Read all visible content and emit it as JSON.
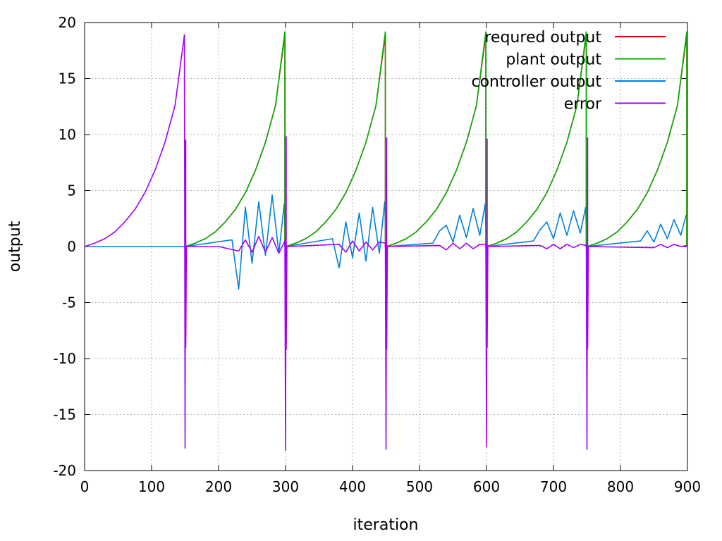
{
  "chart_data": {
    "type": "line",
    "xlabel": "iteration",
    "ylabel": "output",
    "xlim": [
      0,
      900
    ],
    "ylim": [
      -20,
      20
    ],
    "x_ticks": [
      0,
      100,
      200,
      300,
      400,
      500,
      600,
      700,
      800,
      900
    ],
    "y_ticks": [
      -20,
      -15,
      -10,
      -5,
      0,
      5,
      10,
      15,
      20
    ],
    "grid": true,
    "legend_position": "top-right",
    "period": 150,
    "series": [
      {
        "name": "requred output",
        "color": "#e00000",
        "x": [
          0,
          15,
          30,
          45,
          60,
          75,
          90,
          105,
          120,
          135,
          149
        ],
        "values": [
          0.0,
          0.3,
          0.7,
          1.3,
          2.2,
          3.3,
          4.8,
          6.8,
          9.3,
          12.6,
          18.9
        ],
        "segments": [
          2,
          3,
          4,
          5,
          6
        ]
      },
      {
        "name": "plant output",
        "color": "#00b000",
        "x": [
          0,
          15,
          30,
          45,
          60,
          75,
          90,
          105,
          120,
          135,
          149
        ],
        "values": [
          0.0,
          0.3,
          0.7,
          1.3,
          2.2,
          3.3,
          4.8,
          6.8,
          9.3,
          12.6,
          19.2
        ],
        "segments": [
          2,
          3,
          4,
          5,
          6
        ]
      },
      {
        "name": "controller output",
        "color": "#0080e0",
        "x": [
          0,
          150,
          220,
          230,
          240,
          250,
          260,
          270,
          280,
          290,
          298,
          300,
          370,
          380,
          390,
          400,
          410,
          420,
          430,
          440,
          448,
          450,
          520,
          530,
          540,
          550,
          560,
          570,
          580,
          590,
          598,
          600,
          670,
          680,
          690,
          700,
          710,
          720,
          730,
          740,
          748,
          750,
          830,
          840,
          850,
          860,
          870,
          880,
          890,
          898,
          900
        ],
        "values": [
          0,
          0,
          0.6,
          -3.8,
          3.5,
          -1.5,
          4.0,
          -0.8,
          4.6,
          -0.6,
          3.8,
          0,
          0.7,
          -1.9,
          2.2,
          -1.0,
          3.0,
          -1.3,
          3.5,
          -0.6,
          4.0,
          0,
          0.3,
          1.4,
          1.9,
          0.4,
          2.8,
          0.8,
          3.4,
          1.0,
          3.8,
          0,
          0.5,
          1.5,
          2.2,
          0.7,
          3.0,
          1.0,
          3.2,
          1.2,
          3.5,
          0,
          0.5,
          1.4,
          0.4,
          2.0,
          0.7,
          2.4,
          1.0,
          2.8,
          2.5
        ]
      },
      {
        "name": "error",
        "color": "#a000ff",
        "x": [
          0,
          15,
          30,
          45,
          60,
          75,
          90,
          105,
          120,
          135,
          149,
          150,
          151,
          151,
          152,
          200,
          230,
          240,
          250,
          260,
          270,
          280,
          290,
          299,
          300,
          301,
          301,
          302,
          380,
          390,
          400,
          410,
          420,
          430,
          440,
          449,
          450,
          451,
          451,
          452,
          530,
          540,
          550,
          560,
          570,
          580,
          590,
          599,
          600,
          601,
          601,
          602,
          680,
          690,
          700,
          710,
          720,
          730,
          740,
          749,
          750,
          751,
          751,
          752,
          850,
          860,
          870,
          880,
          890,
          900
        ],
        "values": [
          0.0,
          0.3,
          0.7,
          1.3,
          2.2,
          3.3,
          4.8,
          6.8,
          9.3,
          12.6,
          18.9,
          -18.0,
          9.5,
          -9.0,
          0.0,
          0.0,
          -0.4,
          0.6,
          -0.5,
          0.9,
          -0.5,
          0.8,
          -0.6,
          0.5,
          -18.2,
          9.8,
          -9.2,
          0.0,
          0.2,
          -0.5,
          0.5,
          -0.4,
          0.4,
          -0.3,
          0.4,
          0.3,
          -18.1,
          9.7,
          -9.1,
          0.0,
          0.1,
          -0.3,
          0.3,
          -0.2,
          0.3,
          -0.2,
          0.2,
          0.2,
          -17.9,
          9.6,
          -9.0,
          0.0,
          0.1,
          -0.2,
          0.2,
          -0.2,
          0.2,
          -0.1,
          0.2,
          0.1,
          -18.1,
          9.7,
          -9.1,
          0.0,
          -0.1,
          0.2,
          -0.1,
          0.2,
          0.0,
          0.1
        ]
      }
    ]
  }
}
